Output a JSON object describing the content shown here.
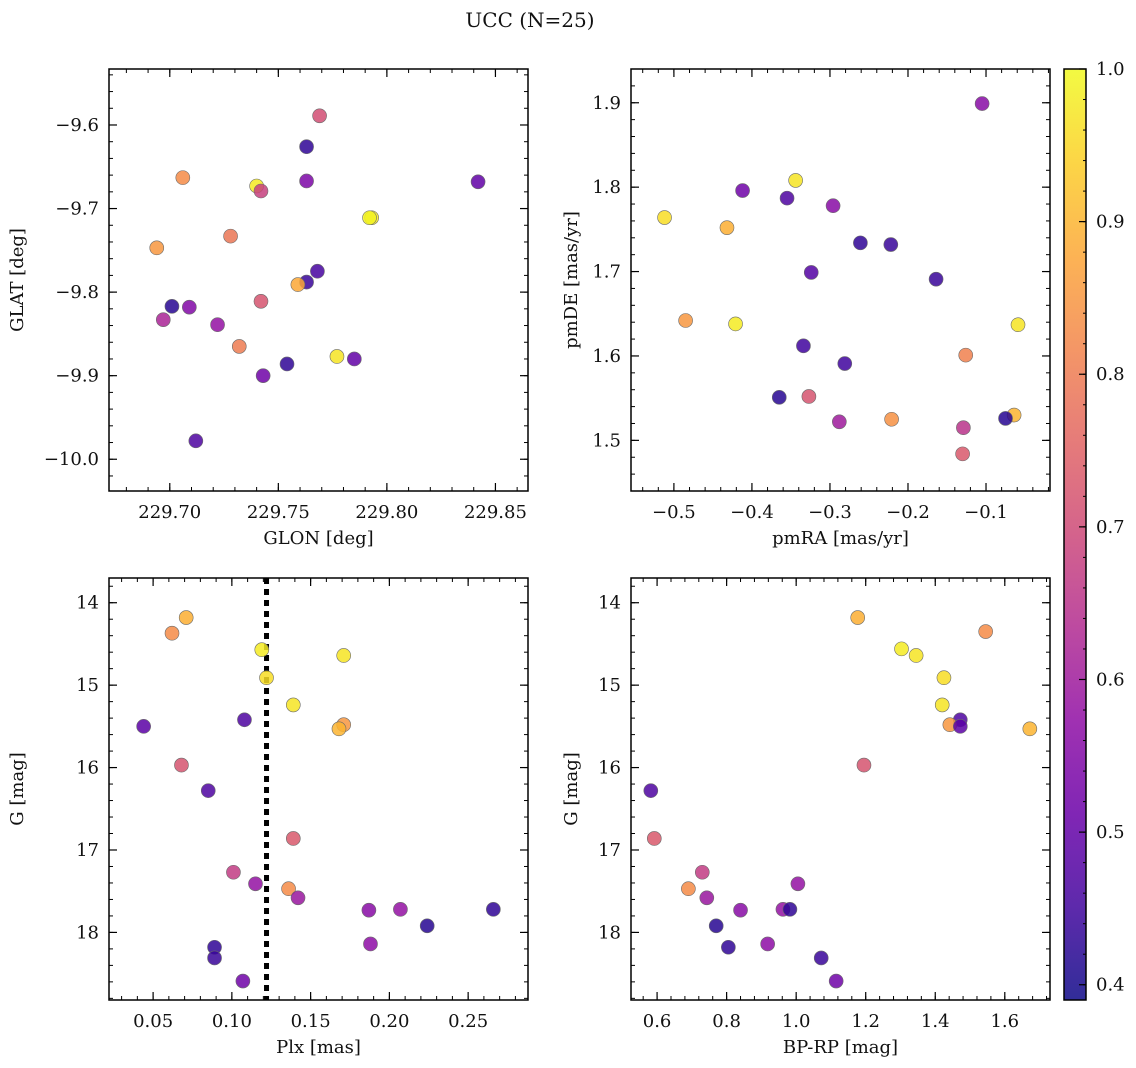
{
  "figure": {
    "title": "UCC (N=25)",
    "colorbar": {
      "colormap": "plasma",
      "range": [
        0.39,
        1.0
      ],
      "ticks": [
        0.4,
        0.5,
        0.6,
        0.7,
        0.8,
        0.9,
        1.0
      ],
      "tick_labels": [
        "0.4",
        "0.5",
        "0.6",
        "0.7",
        "0.8",
        "0.9",
        "1.0"
      ]
    }
  },
  "chart_data": [
    {
      "type": "scatter",
      "name": "glon-glat",
      "xlabel": "GLON [deg]",
      "ylabel": "GLAT [deg]",
      "xlim": [
        229.672,
        229.865
      ],
      "ylim": [
        -10.038,
        -9.533
      ],
      "y_inverted": false,
      "xticks": [
        229.7,
        229.75,
        229.8,
        229.85
      ],
      "xtick_labels": [
        "229.70",
        "229.75",
        "229.80",
        "229.85"
      ],
      "yticks": [
        -10.0,
        -9.9,
        -9.8,
        -9.7,
        -9.6
      ],
      "ytick_labels": [
        "−10.0",
        "−9.9",
        "−9.8",
        "−9.7",
        "−9.6"
      ],
      "points": [
        {
          "x": 229.769,
          "y": -9.589,
          "c": 0.71
        },
        {
          "x": 229.763,
          "y": -9.626,
          "c": 0.43
        },
        {
          "x": 229.842,
          "y": -9.668,
          "c": 0.5
        },
        {
          "x": 229.763,
          "y": -9.667,
          "c": 0.54
        },
        {
          "x": 229.706,
          "y": -9.663,
          "c": 0.83
        },
        {
          "x": 229.74,
          "y": -9.673,
          "c": 0.98
        },
        {
          "x": 229.742,
          "y": -9.679,
          "c": 0.68
        },
        {
          "x": 229.793,
          "y": -9.711,
          "c": 0.98
        },
        {
          "x": 229.792,
          "y": -9.711,
          "c": 0.99
        },
        {
          "x": 229.728,
          "y": -9.733,
          "c": 0.79
        },
        {
          "x": 229.694,
          "y": -9.747,
          "c": 0.85
        },
        {
          "x": 229.768,
          "y": -9.775,
          "c": 0.46
        },
        {
          "x": 229.763,
          "y": -9.788,
          "c": 0.44
        },
        {
          "x": 229.759,
          "y": -9.791,
          "c": 0.88
        },
        {
          "x": 229.742,
          "y": -9.811,
          "c": 0.72
        },
        {
          "x": 229.701,
          "y": -9.817,
          "c": 0.42
        },
        {
          "x": 229.709,
          "y": -9.818,
          "c": 0.55
        },
        {
          "x": 229.697,
          "y": -9.833,
          "c": 0.62
        },
        {
          "x": 229.722,
          "y": -9.839,
          "c": 0.58
        },
        {
          "x": 229.732,
          "y": -9.865,
          "c": 0.8
        },
        {
          "x": 229.777,
          "y": -9.877,
          "c": 0.97
        },
        {
          "x": 229.785,
          "y": -9.88,
          "c": 0.5
        },
        {
          "x": 229.754,
          "y": -9.886,
          "c": 0.43
        },
        {
          "x": 229.743,
          "y": -9.9,
          "c": 0.52
        },
        {
          "x": 229.712,
          "y": -9.978,
          "c": 0.47
        }
      ]
    },
    {
      "type": "scatter",
      "name": "pmra-pmde",
      "xlabel": "pmRA [mas/yr]",
      "ylabel": "pmDE [mas/yr]",
      "xlim": [
        -0.555,
        -0.018
      ],
      "ylim": [
        1.44,
        1.94
      ],
      "y_inverted": false,
      "xticks": [
        -0.5,
        -0.4,
        -0.3,
        -0.2,
        -0.1
      ],
      "xtick_labels": [
        "−0.5",
        "−0.4",
        "−0.3",
        "−0.2",
        "−0.1"
      ],
      "yticks": [
        1.5,
        1.6,
        1.7,
        1.8,
        1.9
      ],
      "ytick_labels": [
        "1.5",
        "1.6",
        "1.7",
        "1.8",
        "1.9"
      ],
      "points": [
        {
          "x": -0.105,
          "y": 1.899,
          "c": 0.56
        },
        {
          "x": -0.344,
          "y": 1.808,
          "c": 0.97
        },
        {
          "x": -0.412,
          "y": 1.796,
          "c": 0.52
        },
        {
          "x": -0.355,
          "y": 1.787,
          "c": 0.47
        },
        {
          "x": -0.296,
          "y": 1.778,
          "c": 0.56
        },
        {
          "x": -0.512,
          "y": 1.764,
          "c": 0.96
        },
        {
          "x": -0.432,
          "y": 1.752,
          "c": 0.89
        },
        {
          "x": -0.261,
          "y": 1.734,
          "c": 0.43
        },
        {
          "x": -0.222,
          "y": 1.732,
          "c": 0.44
        },
        {
          "x": -0.324,
          "y": 1.699,
          "c": 0.48
        },
        {
          "x": -0.164,
          "y": 1.691,
          "c": 0.44
        },
        {
          "x": -0.485,
          "y": 1.642,
          "c": 0.85
        },
        {
          "x": -0.421,
          "y": 1.638,
          "c": 0.98
        },
        {
          "x": -0.059,
          "y": 1.637,
          "c": 0.97
        },
        {
          "x": -0.334,
          "y": 1.612,
          "c": 0.45
        },
        {
          "x": -0.126,
          "y": 1.601,
          "c": 0.81
        },
        {
          "x": -0.281,
          "y": 1.591,
          "c": 0.45
        },
        {
          "x": -0.365,
          "y": 1.551,
          "c": 0.42
        },
        {
          "x": -0.327,
          "y": 1.552,
          "c": 0.72
        },
        {
          "x": -0.064,
          "y": 1.53,
          "c": 0.9
        },
        {
          "x": -0.075,
          "y": 1.526,
          "c": 0.42
        },
        {
          "x": -0.221,
          "y": 1.525,
          "c": 0.84
        },
        {
          "x": -0.288,
          "y": 1.522,
          "c": 0.6
        },
        {
          "x": -0.129,
          "y": 1.515,
          "c": 0.65
        },
        {
          "x": -0.13,
          "y": 1.484,
          "c": 0.73
        }
      ]
    },
    {
      "type": "scatter",
      "name": "plx-g",
      "xlabel": "Plx [mas]",
      "ylabel": "G [mag]",
      "xlim": [
        0.022,
        0.288
      ],
      "ylim": [
        18.82,
        13.7
      ],
      "y_inverted": true,
      "xticks": [
        0.05,
        0.1,
        0.15,
        0.2,
        0.25
      ],
      "xtick_labels": [
        "0.05",
        "0.10",
        "0.15",
        "0.20",
        "0.25"
      ],
      "yticks": [
        14,
        15,
        16,
        17,
        18
      ],
      "ytick_labels": [
        "14",
        "15",
        "16",
        "17",
        "18"
      ],
      "vline": 0.122,
      "points": [
        {
          "x": 0.071,
          "y": 14.18,
          "c": 0.89
        },
        {
          "x": 0.062,
          "y": 14.37,
          "c": 0.83
        },
        {
          "x": 0.119,
          "y": 14.57,
          "c": 0.98
        },
        {
          "x": 0.171,
          "y": 14.64,
          "c": 0.97
        },
        {
          "x": 0.122,
          "y": 14.91,
          "c": 0.96
        },
        {
          "x": 0.139,
          "y": 15.24,
          "c": 0.97
        },
        {
          "x": 0.108,
          "y": 15.42,
          "c": 0.47
        },
        {
          "x": 0.171,
          "y": 15.48,
          "c": 0.85
        },
        {
          "x": 0.044,
          "y": 15.5,
          "c": 0.49
        },
        {
          "x": 0.168,
          "y": 15.53,
          "c": 0.9
        },
        {
          "x": 0.068,
          "y": 15.97,
          "c": 0.72
        },
        {
          "x": 0.085,
          "y": 16.28,
          "c": 0.47
        },
        {
          "x": 0.139,
          "y": 16.86,
          "c": 0.73
        },
        {
          "x": 0.101,
          "y": 17.27,
          "c": 0.67
        },
        {
          "x": 0.115,
          "y": 17.41,
          "c": 0.58
        },
        {
          "x": 0.136,
          "y": 17.47,
          "c": 0.83
        },
        {
          "x": 0.142,
          "y": 17.58,
          "c": 0.59
        },
        {
          "x": 0.187,
          "y": 17.73,
          "c": 0.56
        },
        {
          "x": 0.207,
          "y": 17.72,
          "c": 0.58
        },
        {
          "x": 0.266,
          "y": 17.72,
          "c": 0.43
        },
        {
          "x": 0.224,
          "y": 17.92,
          "c": 0.42
        },
        {
          "x": 0.188,
          "y": 18.14,
          "c": 0.57
        },
        {
          "x": 0.089,
          "y": 18.18,
          "c": 0.43
        },
        {
          "x": 0.089,
          "y": 18.31,
          "c": 0.44
        },
        {
          "x": 0.107,
          "y": 18.59,
          "c": 0.52
        }
      ]
    },
    {
      "type": "scatter",
      "name": "bprp-g",
      "xlabel": "BP-RP [mag]",
      "ylabel": "G [mag]",
      "xlim": [
        0.525,
        1.73
      ],
      "ylim": [
        18.82,
        13.7
      ],
      "y_inverted": true,
      "xticks": [
        0.6,
        0.8,
        1.0,
        1.2,
        1.4,
        1.6
      ],
      "xtick_labels": [
        "0.6",
        "0.8",
        "1.0",
        "1.2",
        "1.4",
        "1.6"
      ],
      "yticks": [
        14,
        15,
        16,
        17,
        18
      ],
      "ytick_labels": [
        "14",
        "15",
        "16",
        "17",
        "18"
      ],
      "points": [
        {
          "x": 1.177,
          "y": 14.18,
          "c": 0.89
        },
        {
          "x": 1.545,
          "y": 14.35,
          "c": 0.83
        },
        {
          "x": 1.303,
          "y": 14.56,
          "c": 0.98
        },
        {
          "x": 1.345,
          "y": 14.64,
          "c": 0.97
        },
        {
          "x": 1.425,
          "y": 14.91,
          "c": 0.96
        },
        {
          "x": 1.42,
          "y": 15.24,
          "c": 0.97
        },
        {
          "x": 1.472,
          "y": 15.42,
          "c": 0.47
        },
        {
          "x": 1.442,
          "y": 15.48,
          "c": 0.85
        },
        {
          "x": 1.472,
          "y": 15.5,
          "c": 0.49
        },
        {
          "x": 1.672,
          "y": 15.53,
          "c": 0.9
        },
        {
          "x": 1.195,
          "y": 15.97,
          "c": 0.72
        },
        {
          "x": 0.582,
          "y": 16.28,
          "c": 0.47
        },
        {
          "x": 0.592,
          "y": 16.86,
          "c": 0.73
        },
        {
          "x": 0.73,
          "y": 17.27,
          "c": 0.67
        },
        {
          "x": 1.005,
          "y": 17.41,
          "c": 0.58
        },
        {
          "x": 0.69,
          "y": 17.47,
          "c": 0.83
        },
        {
          "x": 0.743,
          "y": 17.58,
          "c": 0.59
        },
        {
          "x": 0.84,
          "y": 17.73,
          "c": 0.56
        },
        {
          "x": 0.962,
          "y": 17.72,
          "c": 0.58
        },
        {
          "x": 0.982,
          "y": 17.72,
          "c": 0.43
        },
        {
          "x": 0.77,
          "y": 17.92,
          "c": 0.42
        },
        {
          "x": 0.918,
          "y": 18.14,
          "c": 0.57
        },
        {
          "x": 0.805,
          "y": 18.18,
          "c": 0.43
        },
        {
          "x": 1.072,
          "y": 18.31,
          "c": 0.44
        },
        {
          "x": 1.115,
          "y": 18.59,
          "c": 0.52
        }
      ]
    }
  ]
}
